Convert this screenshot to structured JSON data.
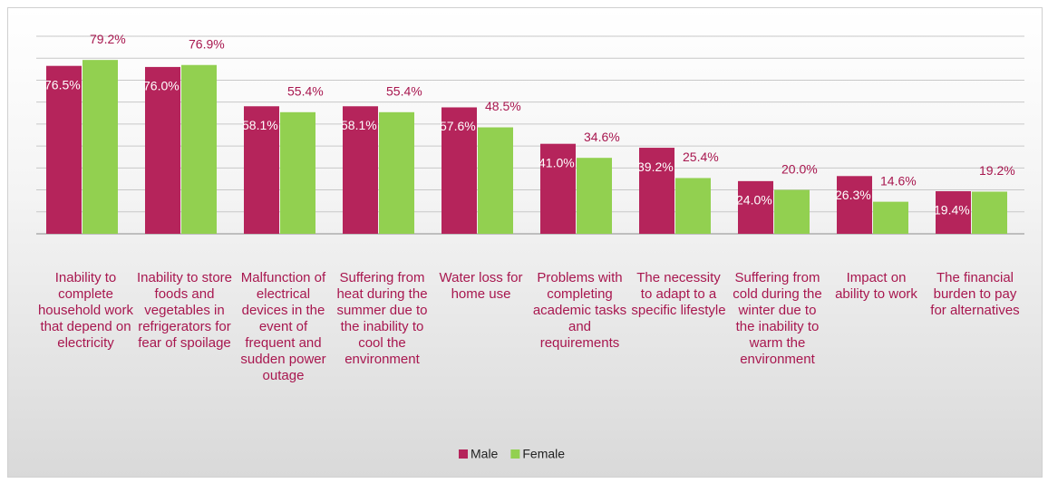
{
  "chart_data": {
    "type": "bar",
    "categories": [
      "Inability to complete household work that depend on electricity",
      "Inability to store foods and vegetables in refrigerators for fear of spoilage",
      "Malfunction of electrical devices in the event of frequent and sudden power outage",
      "Suffering from heat during the summer due to the inability to cool the environment",
      "Water loss for home use",
      "Problems with completing academic tasks and requirements",
      "The necessity to adapt to a specific lifestyle",
      "Suffering from cold during the winter due to the inability to warm the environment",
      "Impact on ability to work",
      "The financial burden to pay for alternatives"
    ],
    "series": [
      {
        "name": "Male",
        "color": "#b5245b",
        "values": [
          76.5,
          76.0,
          58.1,
          58.1,
          57.6,
          41.0,
          39.2,
          24.0,
          26.3,
          19.4
        ],
        "value_labels": [
          "76.5%",
          "76.0%",
          "58.1%",
          "58.1%",
          "57.6%",
          "41.0%",
          "39.2%",
          "24.0%",
          "26.3%",
          "19.4%"
        ]
      },
      {
        "name": "Female",
        "color": "#92d050",
        "values": [
          79.2,
          76.9,
          55.4,
          55.4,
          48.5,
          34.6,
          25.4,
          20.0,
          14.6,
          19.2
        ],
        "value_labels": [
          "79.2%",
          "76.9%",
          "55.4%",
          "55.4%",
          "48.5%",
          "34.6%",
          "25.4%",
          "20.0%",
          "14.6%",
          "19.2%"
        ]
      }
    ],
    "ylim": [
      0,
      90
    ],
    "yticks": [
      0,
      10,
      20,
      30,
      40,
      50,
      60,
      70,
      80,
      90
    ],
    "grid": true,
    "legend": "bottom"
  }
}
